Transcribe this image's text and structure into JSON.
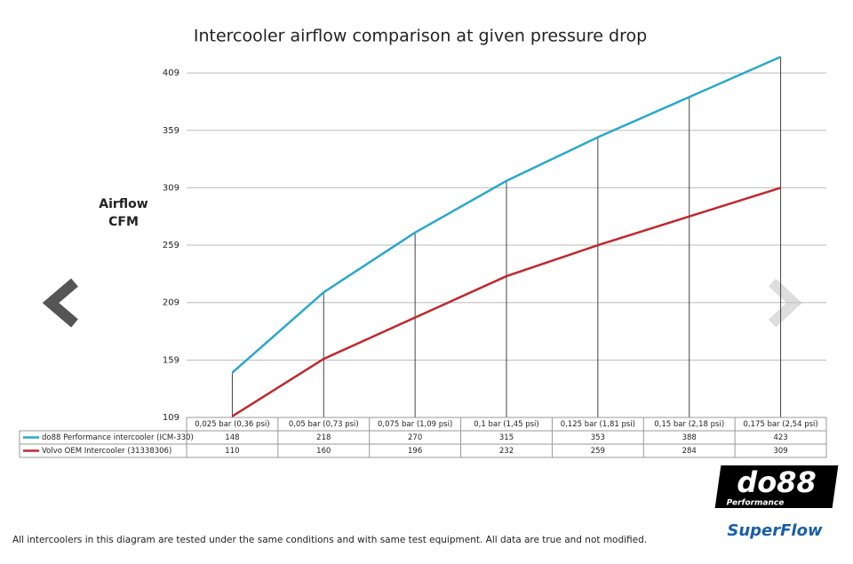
{
  "chart_data": {
    "type": "line",
    "title": "Intercooler airflow comparison at given pressure drop",
    "ylabel": "Airflow CFM",
    "categories": [
      "0,025 bar (0,36 psi)",
      "0,05 bar (0,73 psi)",
      "0,075 bar (1,09 psi)",
      "0,1 bar (1,45 psi)",
      "0,125 bar (1,81 psi)",
      "0,15 bar (2,18 psi)",
      "0,175 bar (2,54 psi)"
    ],
    "series": [
      {
        "name": "do88 Performance intercooler (ICM-330)",
        "color": "#2aa8c9",
        "values": [
          148,
          218,
          270,
          315,
          353,
          388,
          423
        ]
      },
      {
        "name": "Volvo OEM Intercooler (31338306)",
        "color": "#c0282d",
        "values": [
          110,
          160,
          196,
          232,
          259,
          284,
          309
        ]
      }
    ],
    "ylim": [
      109,
      423
    ],
    "yticks": [
      109,
      159,
      209,
      259,
      309,
      359,
      409
    ],
    "grid": true
  },
  "footnote": "All intercoolers in this diagram are tested under the same conditions and with same test equipment. All data are true and not modified.",
  "logos": {
    "brand": "do88",
    "sub": "Performance",
    "partner": "SuperFlow"
  }
}
